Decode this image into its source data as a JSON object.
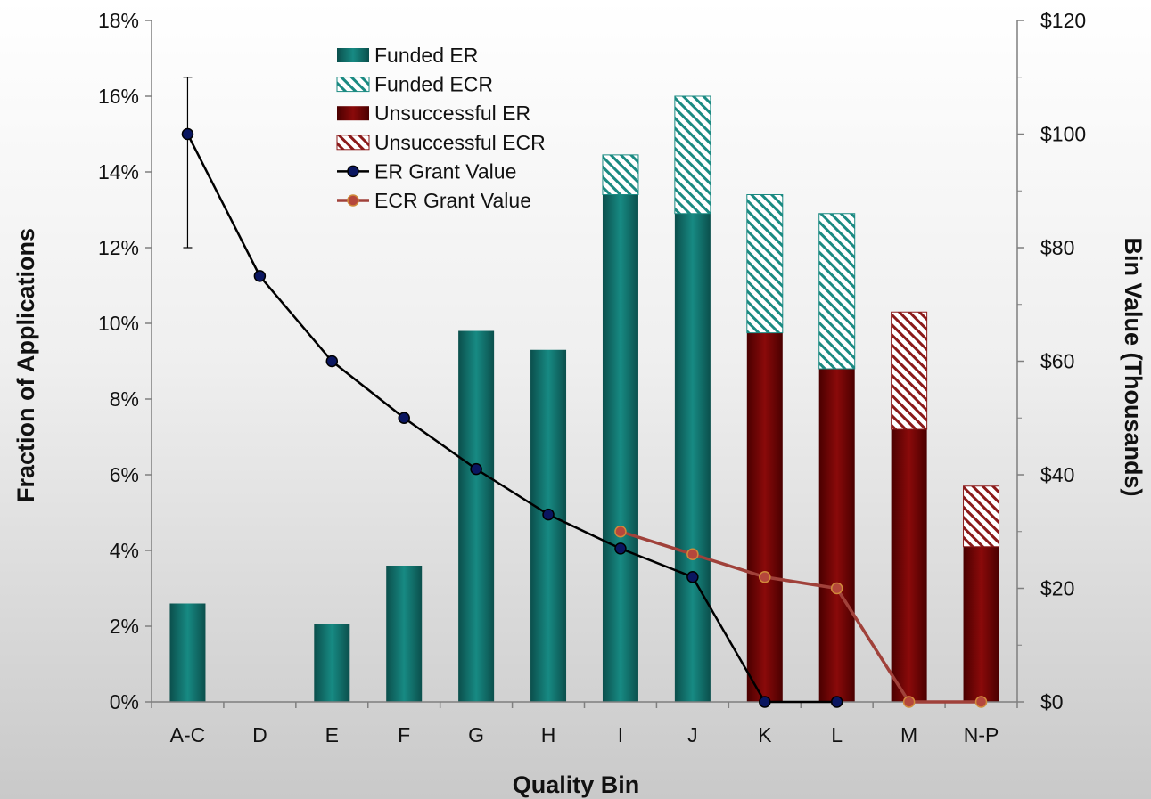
{
  "chart_data": {
    "type": "bar",
    "categories": [
      "A-C",
      "D",
      "E",
      "F",
      "G",
      "H",
      "I",
      "J",
      "K",
      "L",
      "M",
      "N-P"
    ],
    "xlabel": "Quality Bin",
    "ylabel": "Fraction of Applications",
    "y2label": "Bin Value (Thousands)",
    "ylim": [
      0,
      18
    ],
    "y2lim": [
      0,
      120
    ],
    "yticks": [
      "0%",
      "2%",
      "4%",
      "6%",
      "8%",
      "10%",
      "12%",
      "14%",
      "16%",
      "18%"
    ],
    "y2ticks": [
      "$0",
      "$20",
      "$40",
      "$60",
      "$80",
      "$100",
      "$120"
    ],
    "stacked": true,
    "series": [
      {
        "name": "Funded ER",
        "kind": "bar",
        "color": "#0f6e6a",
        "values": [
          2.6,
          0,
          2.05,
          3.6,
          9.8,
          9.3,
          13.4,
          12.9,
          0,
          0,
          0,
          0
        ]
      },
      {
        "name": "Funded ECR",
        "kind": "bar-hatched",
        "color": "#1b8a82",
        "values": [
          0,
          0,
          0,
          0,
          0,
          0,
          1.05,
          3.1,
          3.65,
          4.1,
          0,
          0
        ]
      },
      {
        "name": "Unsuccessful ER",
        "kind": "bar",
        "color": "#6e0000",
        "values": [
          0,
          0,
          0,
          0,
          0,
          0,
          0,
          0,
          9.75,
          8.8,
          7.2,
          4.1
        ]
      },
      {
        "name": "Unsuccessful ECR",
        "kind": "bar-hatched",
        "color": "#8b1a1a",
        "values": [
          0,
          0,
          0,
          0,
          0,
          0,
          0,
          0,
          0,
          0,
          3.1,
          1.6
        ]
      },
      {
        "name": "ER Grant Value",
        "kind": "line",
        "axis": "right",
        "color": "#000000",
        "marker": "#0a1660",
        "values": [
          100,
          75,
          60,
          50,
          41,
          33,
          27,
          22,
          0,
          0,
          null,
          null
        ],
        "error_bar": {
          "index": 0,
          "low": 80,
          "high": 110
        }
      },
      {
        "name": "ECR Grant Value",
        "kind": "line",
        "axis": "right",
        "color": "#a0413a",
        "marker": "#b5473c",
        "values": [
          null,
          null,
          null,
          null,
          null,
          null,
          30,
          26,
          22,
          20,
          0,
          0
        ]
      }
    ],
    "grid": false,
    "legend_position": "top-center"
  }
}
